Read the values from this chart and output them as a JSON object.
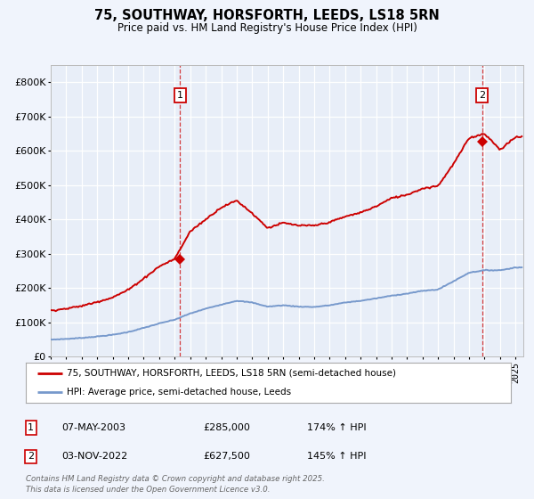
{
  "title": "75, SOUTHWAY, HORSFORTH, LEEDS, LS18 5RN",
  "subtitle": "Price paid vs. HM Land Registry's House Price Index (HPI)",
  "bg_color": "#f0f4fc",
  "plot_bg_color": "#e8eef8",
  "grid_color": "#ffffff",
  "red_color": "#cc0000",
  "blue_color": "#7799cc",
  "legend1": "75, SOUTHWAY, HORSFORTH, LEEDS, LS18 5RN (semi-detached house)",
  "legend2": "HPI: Average price, semi-detached house, Leeds",
  "annotation1_label": "1",
  "annotation1_date": "07-MAY-2003",
  "annotation1_price": "£285,000",
  "annotation1_hpi": "174% ↑ HPI",
  "annotation2_label": "2",
  "annotation2_date": "03-NOV-2022",
  "annotation2_price": "£627,500",
  "annotation2_hpi": "145% ↑ HPI",
  "footer1": "Contains HM Land Registry data © Crown copyright and database right 2025.",
  "footer2": "This data is licensed under the Open Government Licence v3.0.",
  "xmin": 1995.0,
  "xmax": 2025.5,
  "ymin": 0,
  "ymax": 850000,
  "marker1_x": 2003.35,
  "marker1_y": 285000,
  "marker2_x": 2022.84,
  "marker2_y": 627500,
  "vline1_x": 2003.35,
  "vline2_x": 2022.84,
  "yticks": [
    0,
    100000,
    200000,
    300000,
    400000,
    500000,
    600000,
    700000,
    800000
  ],
  "hpi_years": [
    1995,
    1996,
    1997,
    1998,
    1999,
    2000,
    2001,
    2002,
    2003,
    2004,
    2005,
    2006,
    2007,
    2008,
    2009,
    2010,
    2011,
    2012,
    2013,
    2014,
    2015,
    2016,
    2017,
    2018,
    2019,
    2020,
    2021,
    2022,
    2023,
    2024,
    2025
  ],
  "hpi_values": [
    50000,
    52000,
    55000,
    59000,
    64000,
    72000,
    84000,
    97000,
    108000,
    126000,
    140000,
    152000,
    163000,
    158000,
    146000,
    150000,
    146000,
    145000,
    150000,
    158000,
    163000,
    170000,
    178000,
    184000,
    192000,
    196000,
    220000,
    245000,
    252000,
    252000,
    260000
  ],
  "prop_years": [
    1995,
    1996,
    1997,
    1998,
    1999,
    2000,
    2001,
    2002,
    2003,
    2004,
    2005,
    2006,
    2007,
    2008,
    2009,
    2010,
    2011,
    2012,
    2013,
    2014,
    2015,
    2016,
    2017,
    2018,
    2019,
    2020,
    2021,
    2022,
    2023,
    2024,
    2025
  ],
  "prop_values": [
    135000,
    140000,
    148000,
    160000,
    173000,
    195000,
    228000,
    263000,
    285000,
    365000,
    400000,
    435000,
    455000,
    418000,
    375000,
    390000,
    382000,
    382000,
    392000,
    408000,
    420000,
    438000,
    462000,
    472000,
    490000,
    498000,
    562000,
    637000,
    650000,
    603000,
    640000
  ]
}
